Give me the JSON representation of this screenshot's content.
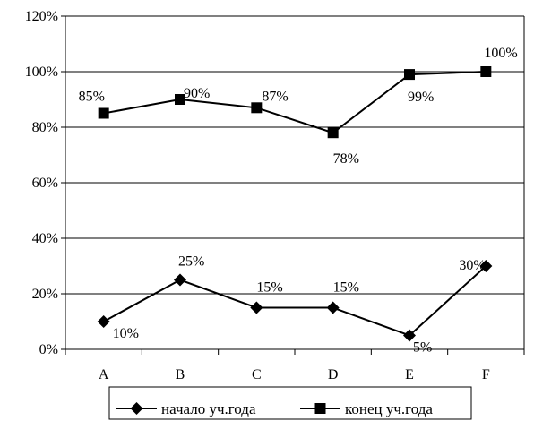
{
  "chart_data": {
    "type": "line",
    "categories": [
      "A",
      "B",
      "C",
      "D",
      "E",
      "F"
    ],
    "ylim": [
      0,
      120
    ],
    "y_tick_step": 20,
    "y_tick_labels": [
      "0%",
      "20%",
      "40%",
      "60%",
      "80%",
      "100%",
      "120%"
    ],
    "grid": true,
    "legend_position": "bottom",
    "series": [
      {
        "name": "начало уч.года",
        "marker": "diamond",
        "color": "#000000",
        "values": [
          10,
          25,
          15,
          15,
          5,
          30
        ],
        "labels": [
          "10%",
          "25%",
          "15%",
          "15%",
          "5%",
          "30%"
        ]
      },
      {
        "name": "конец уч.года",
        "marker": "square",
        "color": "#000000",
        "values": [
          85,
          90,
          87,
          78,
          99,
          100
        ],
        "labels": [
          "85%",
          "90%",
          "87%",
          "78%",
          "99%",
          "100%"
        ]
      }
    ]
  }
}
